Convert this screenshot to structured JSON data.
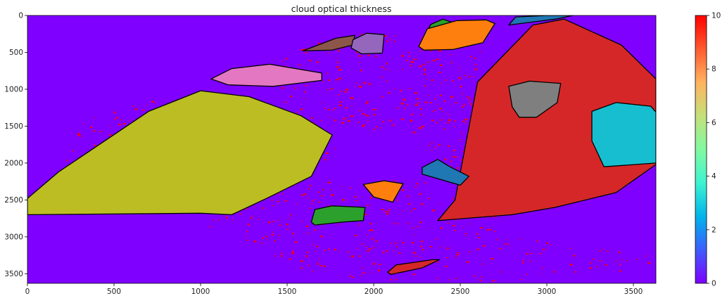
{
  "chart_data": {
    "type": "heatmap",
    "title": "cloud optical thickness",
    "xlabel": "",
    "ylabel": "",
    "xlim": [
      0,
      3630
    ],
    "ylim": [
      3630,
      0
    ],
    "x_ticks": [
      0,
      500,
      1000,
      1500,
      2000,
      2500,
      3000,
      3500
    ],
    "y_ticks": [
      0,
      500,
      1000,
      1500,
      2000,
      2500,
      3000,
      3500
    ],
    "colorbar": {
      "range": [
        0,
        10
      ],
      "ticks": [
        0,
        2,
        4,
        6,
        8,
        10
      ],
      "colormap": "rainbow",
      "colors": [
        "#7f00ff",
        "#3d5dfc",
        "#00b4eb",
        "#3ef3d0",
        "#82f9a1",
        "#c4e07a",
        "#ffb360",
        "#ff5a2f",
        "#ff0000"
      ]
    },
    "background_color": "#7f00ff",
    "high_value_color": "#ff0000",
    "grid": false,
    "regions": [
      {
        "color": "#bcbd22",
        "points": [
          [
            0,
            2480
          ],
          [
            180,
            2120
          ],
          [
            700,
            1300
          ],
          [
            1000,
            1020
          ],
          [
            1280,
            1100
          ],
          [
            1580,
            1360
          ],
          [
            1760,
            1620
          ],
          [
            1640,
            2180
          ],
          [
            1380,
            2480
          ],
          [
            1180,
            2700
          ],
          [
            1000,
            2680
          ],
          [
            0,
            2700
          ]
        ]
      },
      {
        "color": "#e377c2",
        "points": [
          [
            1060,
            860
          ],
          [
            1180,
            720
          ],
          [
            1400,
            660
          ],
          [
            1700,
            780
          ],
          [
            1700,
            880
          ],
          [
            1420,
            960
          ],
          [
            1160,
            940
          ]
        ]
      },
      {
        "color": "#8c564b",
        "points": [
          [
            1590,
            480
          ],
          [
            1780,
            310
          ],
          [
            1890,
            270
          ],
          [
            1880,
            400
          ],
          [
            1760,
            470
          ]
        ]
      },
      {
        "color": "#9467bd",
        "points": [
          [
            1880,
            330
          ],
          [
            1960,
            240
          ],
          [
            2060,
            260
          ],
          [
            2050,
            510
          ],
          [
            1930,
            520
          ],
          [
            1870,
            440
          ]
        ]
      },
      {
        "color": "#2ca02c",
        "points": [
          [
            2270,
            380
          ],
          [
            2330,
            120
          ],
          [
            2400,
            50
          ],
          [
            2460,
            100
          ],
          [
            2440,
            280
          ],
          [
            2300,
            400
          ]
        ]
      },
      {
        "color": "#ff7f0e",
        "points": [
          [
            2260,
            420
          ],
          [
            2310,
            180
          ],
          [
            2480,
            70
          ],
          [
            2650,
            60
          ],
          [
            2700,
            110
          ],
          [
            2630,
            370
          ],
          [
            2460,
            460
          ],
          [
            2290,
            470
          ]
        ]
      },
      {
        "color": "#1f77b4",
        "points": [
          [
            2780,
            130
          ],
          [
            2820,
            20
          ],
          [
            3000,
            0
          ],
          [
            3150,
            0
          ],
          [
            3050,
            50
          ]
        ]
      },
      {
        "color": "#d62728",
        "points": [
          [
            2600,
            900
          ],
          [
            2920,
            130
          ],
          [
            3100,
            50
          ],
          [
            3430,
            400
          ],
          [
            3630,
            860
          ],
          [
            3630,
            2020
          ],
          [
            3400,
            2400
          ],
          [
            3050,
            2600
          ],
          [
            2800,
            2700
          ],
          [
            2370,
            2780
          ],
          [
            2470,
            2500
          ]
        ]
      },
      {
        "color": "#7f7f7f",
        "points": [
          [
            2800,
            1240
          ],
          [
            2780,
            960
          ],
          [
            2900,
            890
          ],
          [
            3080,
            920
          ],
          [
            3060,
            1180
          ],
          [
            2940,
            1380
          ],
          [
            2840,
            1380
          ]
        ]
      },
      {
        "color": "#17becf",
        "points": [
          [
            3260,
            1700
          ],
          [
            3260,
            1300
          ],
          [
            3400,
            1180
          ],
          [
            3600,
            1230
          ],
          [
            3630,
            1310
          ],
          [
            3630,
            2000
          ],
          [
            3330,
            2050
          ]
        ]
      },
      {
        "color": "#1f77b4",
        "points": [
          [
            2280,
            2060
          ],
          [
            2370,
            1950
          ],
          [
            2440,
            2050
          ],
          [
            2550,
            2180
          ],
          [
            2500,
            2300
          ],
          [
            2280,
            2150
          ]
        ]
      },
      {
        "color": "#ff7f0e",
        "points": [
          [
            1940,
            2290
          ],
          [
            2060,
            2240
          ],
          [
            2170,
            2280
          ],
          [
            2110,
            2530
          ],
          [
            2000,
            2460
          ]
        ]
      },
      {
        "color": "#2ca02c",
        "points": [
          [
            1640,
            2800
          ],
          [
            1660,
            2630
          ],
          [
            1760,
            2580
          ],
          [
            1950,
            2600
          ],
          [
            1940,
            2780
          ],
          [
            1820,
            2800
          ],
          [
            1660,
            2840
          ]
        ]
      },
      {
        "color": "#d62728",
        "points": [
          [
            2080,
            3480
          ],
          [
            2130,
            3380
          ],
          [
            2340,
            3310
          ],
          [
            2380,
            3310
          ],
          [
            2280,
            3420
          ],
          [
            2100,
            3510
          ]
        ]
      }
    ]
  }
}
